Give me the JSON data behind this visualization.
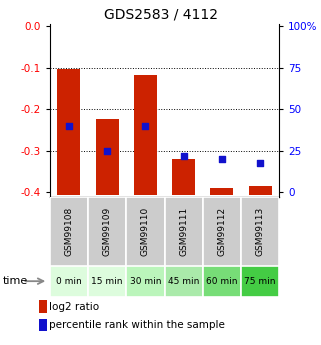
{
  "title": "GDS2583 / 4112",
  "samples": [
    "GSM99108",
    "GSM99109",
    "GSM99110",
    "GSM99111",
    "GSM99112",
    "GSM99113"
  ],
  "time_labels": [
    "0 min",
    "15 min",
    "30 min",
    "45 min",
    "60 min",
    "75 min"
  ],
  "log2_bar_tops": [
    -0.103,
    -0.222,
    -0.118,
    -0.32,
    -0.39,
    -0.385
  ],
  "log2_bar_bots": [
    -0.405,
    -0.405,
    -0.405,
    -0.405,
    -0.405,
    -0.405
  ],
  "percentile_rank": [
    40,
    25,
    40,
    22,
    20,
    18
  ],
  "bar_color": "#cc2200",
  "dot_color": "#1111cc",
  "left_yticks": [
    0.0,
    -0.1,
    -0.2,
    -0.3,
    -0.4
  ],
  "right_yticks": [
    100,
    75,
    50,
    25,
    0
  ],
  "time_bg_colors": [
    "#ddfcdd",
    "#ddfcdd",
    "#bbf5bb",
    "#aaeaaa",
    "#77dd77",
    "#44cc44"
  ],
  "sample_bg": "#cccccc",
  "legend_log2_label": "log2 ratio",
  "legend_pct_label": "percentile rank within the sample",
  "ymin": -0.41,
  "ymax": 0.005
}
